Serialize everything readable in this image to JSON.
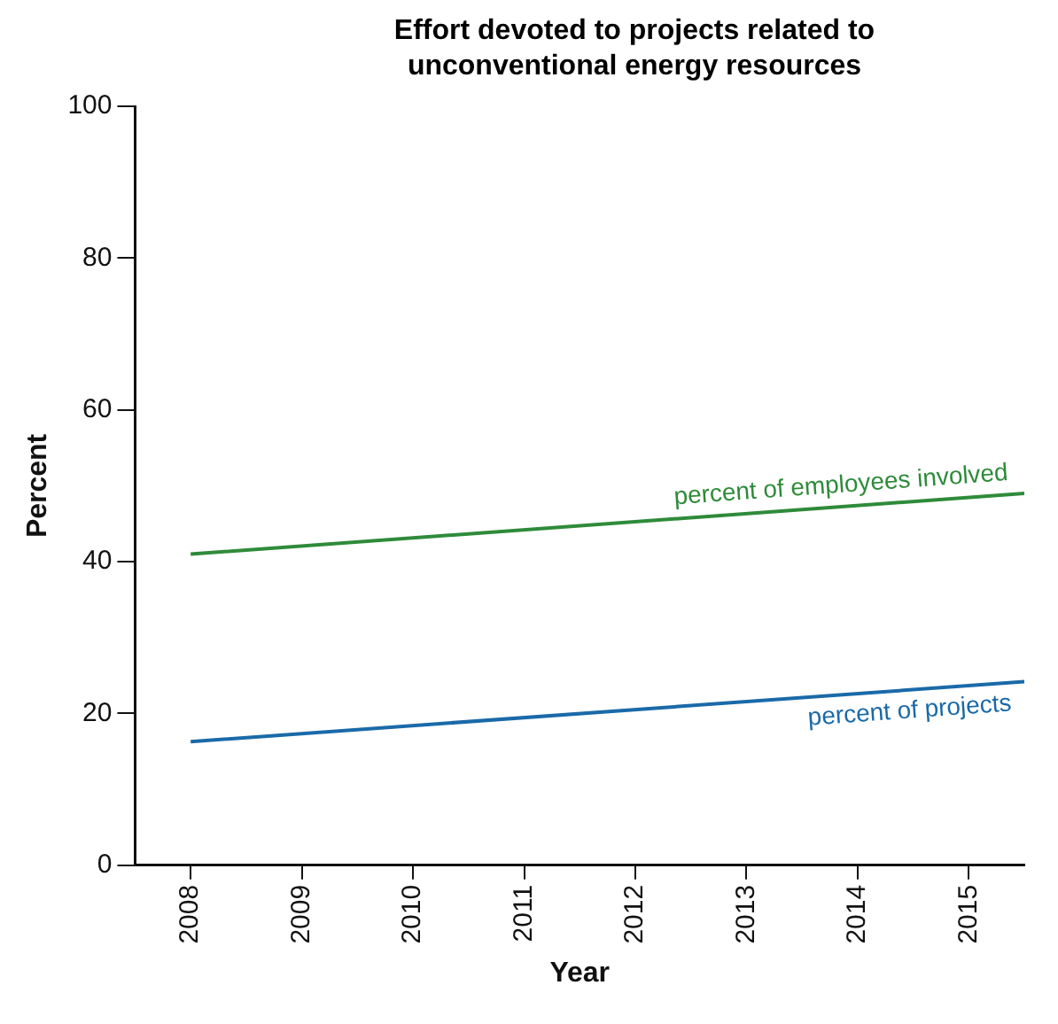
{
  "chart_data": {
    "type": "line",
    "title": "Effort devoted to projects related to unconventional energy resources",
    "xlabel": "Year",
    "ylabel": "Percent",
    "x": [
      2008,
      2015.5
    ],
    "series": [
      {
        "name": "percent of employees involved",
        "color": "#2e8b3a",
        "values": [
          41,
          49
        ]
      },
      {
        "name": "percent of projects",
        "color": "#1a6aa8",
        "values": [
          16.3,
          24.2
        ]
      }
    ],
    "xlim": [
      2007.5,
      2015.5
    ],
    "xticks": [
      2008,
      2009,
      2010,
      2011,
      2012,
      2013,
      2014,
      2015
    ],
    "ylim": [
      0,
      100
    ],
    "yticks": [
      0,
      20,
      40,
      60,
      80,
      100
    ],
    "grid": false,
    "legend": false,
    "marker": "none",
    "line_style": "solid"
  }
}
